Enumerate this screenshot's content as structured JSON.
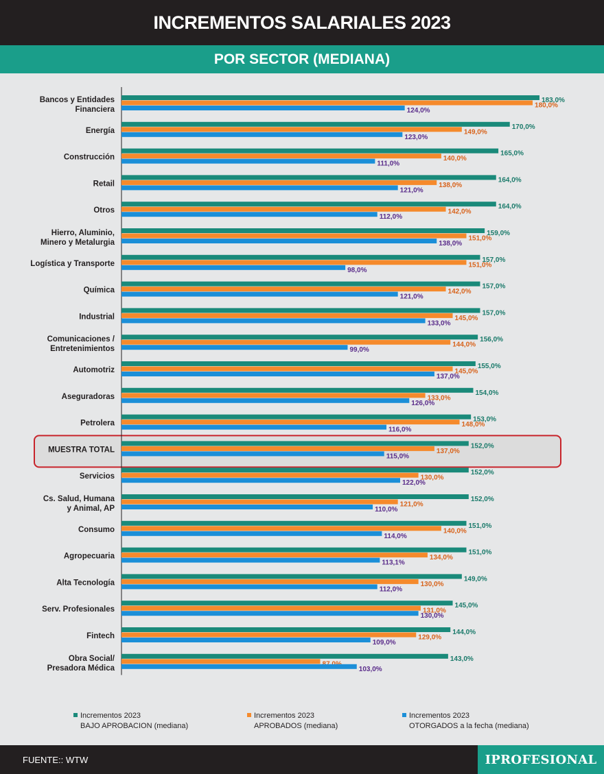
{
  "header": {
    "title": "INCREMENTOS SALARIALES 2023",
    "subtitle": "POR SECTOR (MEDIANA)"
  },
  "colors": {
    "teal": "#1a8a7a",
    "orange": "#f58a2c",
    "blue": "#1b8fd8",
    "teal_label": "#1a7a6a",
    "orange_label": "#d8631b",
    "blue_label": "#5a2c8a",
    "highlight": "#c8242b"
  },
  "legend": [
    {
      "line1": "Incrementos 2023",
      "line2": "BAJO APROBACION (mediana)"
    },
    {
      "line1": "Incrementos 2023",
      "line2": "APROBADOS (mediana)"
    },
    {
      "line1": "Incrementos 2023",
      "line2": "OTORGADOS a la fecha (mediana)"
    }
  ],
  "footer": {
    "source": "FUENTE:: WTW",
    "brand": "IPROFESIONAL"
  },
  "chart_data": {
    "type": "bar",
    "orientation": "horizontal",
    "title": "INCREMENTOS SALARIALES 2023",
    "subtitle": "POR SECTOR (MEDIANA)",
    "highlighted_category": "MUESTRA TOTAL",
    "categories": [
      [
        "Bancos y Entidades",
        "Financiera"
      ],
      [
        "Energía"
      ],
      [
        "Construcción"
      ],
      [
        "Retail"
      ],
      [
        "Otros"
      ],
      [
        "Hierro, Aluminio,",
        "Minero y Metalurgia"
      ],
      [
        "Logística y Transporte"
      ],
      [
        "Química"
      ],
      [
        "Industrial"
      ],
      [
        "Comunicaciones /",
        "Entretenimientos"
      ],
      [
        "Automotriz"
      ],
      [
        "Aseguradoras"
      ],
      [
        "Petrolera"
      ],
      [
        "MUESTRA TOTAL"
      ],
      [
        "Servicios"
      ],
      [
        "Cs. Salud, Humana",
        "y Animal, AP"
      ],
      [
        "Consumo"
      ],
      [
        "Agropecuaria"
      ],
      [
        "Alta Tecnología"
      ],
      [
        "Serv. Profesionales"
      ],
      [
        "Fintech"
      ],
      [
        "Obra Social/",
        "Presadora Médica"
      ]
    ],
    "series": [
      {
        "name": "Incrementos 2023 BAJO APROBACION (mediana)",
        "values": [
          183,
          170,
          165,
          164,
          164,
          159,
          157,
          157,
          157,
          156,
          155,
          154,
          153,
          152,
          152,
          152,
          151,
          151,
          149,
          145,
          144,
          143
        ],
        "labels": [
          "183,0%",
          "170,0%",
          "165,0%",
          "164,0%",
          "164,0%",
          "159,0%",
          "157,0%",
          "157,0%",
          "157,0%",
          "156,0%",
          "155,0%",
          "154,0%",
          "153,0%",
          "152,0%",
          "152,0%",
          "152,0%",
          "151,0%",
          "151,0%",
          "149,0%",
          "145,0%",
          "144,0%",
          "143,0%"
        ]
      },
      {
        "name": "Incrementos 2023 APROBADOS (mediana)",
        "values": [
          180,
          149,
          140,
          138,
          142,
          151,
          151,
          142,
          145,
          144,
          145,
          133,
          148,
          137,
          130,
          121,
          140,
          134,
          130,
          131,
          129,
          87
        ],
        "labels": [
          "180,0%",
          "149,0%",
          "140,0%",
          "138,0%",
          "142,0%",
          "151,0%",
          "151,0%",
          "142,0%",
          "145,0%",
          "144,0%",
          "145,0%",
          "133,0%",
          "148,0%",
          "137,0%",
          "130,0%",
          "121,0%",
          "140,0%",
          "134,0%",
          "130,0%",
          "131,0%",
          "129,0%",
          "87,0%"
        ]
      },
      {
        "name": "Incrementos 2023 OTORGADOS a la fecha (mediana)",
        "values": [
          124,
          123,
          111,
          121,
          112,
          138,
          98,
          121,
          133,
          99,
          137,
          126,
          116,
          115,
          122,
          110,
          114,
          113.1,
          112,
          130,
          109,
          103
        ],
        "labels": [
          "124,0%",
          "123,0%",
          "111,0%",
          "121,0%",
          "112,0%",
          "138,0%",
          "98,0%",
          "121,0%",
          "133,0%",
          "99,0%",
          "137,0%",
          "126,0%",
          "116,0%",
          "115,0%",
          "122,0%",
          "110,0%",
          "114,0%",
          "113,1%",
          "112,0%",
          "130,0%",
          "109,0%",
          "103,0%"
        ]
      }
    ],
    "xlim": [
      0,
      183
    ]
  }
}
